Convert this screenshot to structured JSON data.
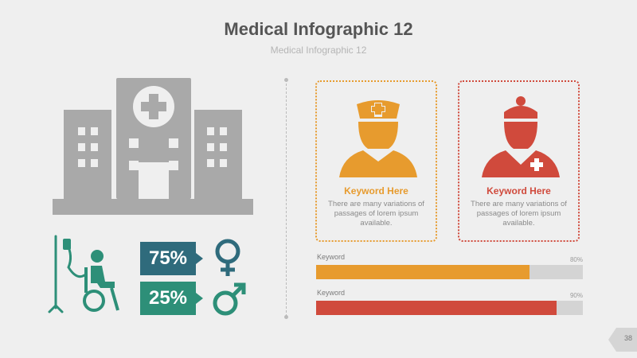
{
  "header": {
    "title": "Medical Infographic 12",
    "subtitle": "Medical Infographic 12"
  },
  "colors": {
    "orange": "#e79b2e",
    "red": "#d04a3c",
    "teal": "#2d8f78",
    "navy": "#2f6b7c",
    "gray": "#a9a9a9"
  },
  "stats": {
    "female_percent": "75%",
    "male_percent": "25%"
  },
  "cards": [
    {
      "title": "Keyword Here",
      "text": "There are many variations of passages of lorem ipsum available."
    },
    {
      "title": "Keyword Here",
      "text": "There are many variations of passages of lorem ipsum available."
    }
  ],
  "bars": [
    {
      "label": "Keyword",
      "value_label": "80%",
      "value": 0.8
    },
    {
      "label": "Keyword",
      "value_label": "90%",
      "value": 0.9
    }
  ],
  "page_number": "38"
}
